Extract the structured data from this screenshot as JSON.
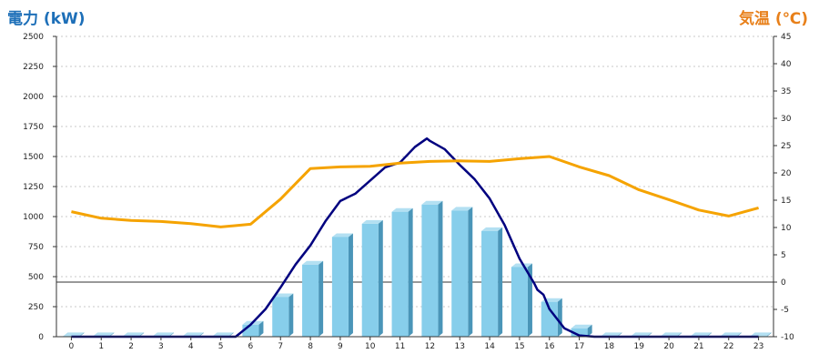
{
  "header": {
    "left_title": "電力 (kW)",
    "right_title": "気温 (℃)"
  },
  "chart_data": {
    "type": "bar",
    "categories": [
      "0",
      "1",
      "2",
      "3",
      "4",
      "5",
      "6",
      "7",
      "8",
      "9",
      "10",
      "11",
      "12",
      "13",
      "14",
      "15",
      "16",
      "17",
      "18",
      "19",
      "20",
      "21",
      "22",
      "23"
    ],
    "left_axis": {
      "ylim": [
        0,
        2500
      ],
      "ticks": [
        0,
        250,
        500,
        750,
        1000,
        1250,
        1500,
        1750,
        2000,
        2250,
        2500
      ]
    },
    "right_axis": {
      "ylim": [
        -10,
        45
      ],
      "ticks": [
        -10,
        -5,
        0,
        5,
        10,
        15,
        20,
        25,
        30,
        35,
        40,
        45
      ]
    },
    "grid": "horizontal-dashed",
    "reference_line_right_value": 0,
    "series": [
      {
        "kind": "bar",
        "axis": "left",
        "color": "#87ceeb",
        "values": [
          5,
          5,
          5,
          5,
          5,
          5,
          100,
          330,
          600,
          830,
          940,
          1040,
          1100,
          1050,
          880,
          580,
          290,
          70,
          5,
          5,
          5,
          5,
          5,
          5
        ]
      },
      {
        "kind": "line",
        "axis": "left",
        "color": "#00007f",
        "x": [
          0,
          5,
          5.5,
          6,
          6.5,
          7,
          7.5,
          8,
          8.5,
          9,
          9.5,
          10,
          10.5,
          11,
          11.5,
          11.9,
          12,
          12.5,
          13,
          13.5,
          14,
          14.5,
          15,
          15.5,
          15.6,
          15.8,
          16,
          16.5,
          17,
          17.5,
          23
        ],
        "y": [
          0,
          0,
          0,
          100,
          230,
          410,
          600,
          760,
          960,
          1130,
          1190,
          1300,
          1410,
          1450,
          1580,
          1650,
          1630,
          1560,
          1430,
          1310,
          1150,
          930,
          650,
          440,
          390,
          350,
          230,
          70,
          10,
          0,
          0
        ]
      },
      {
        "kind": "line",
        "axis": "right",
        "color": "#f5a300",
        "x": [
          0,
          1,
          2,
          3,
          4,
          5,
          6,
          7,
          8,
          9,
          10,
          11,
          12,
          13,
          14,
          15,
          16,
          17,
          18,
          19,
          20,
          21,
          22,
          23
        ],
        "y": [
          12.9,
          11.7,
          11.3,
          11.1,
          10.7,
          10.1,
          10.6,
          15.2,
          20.8,
          21.1,
          21.2,
          21.8,
          22.1,
          22.2,
          22.1,
          22.6,
          23.0,
          21.1,
          19.5,
          16.9,
          15.1,
          13.2,
          12.1,
          13.6
        ]
      }
    ]
  }
}
